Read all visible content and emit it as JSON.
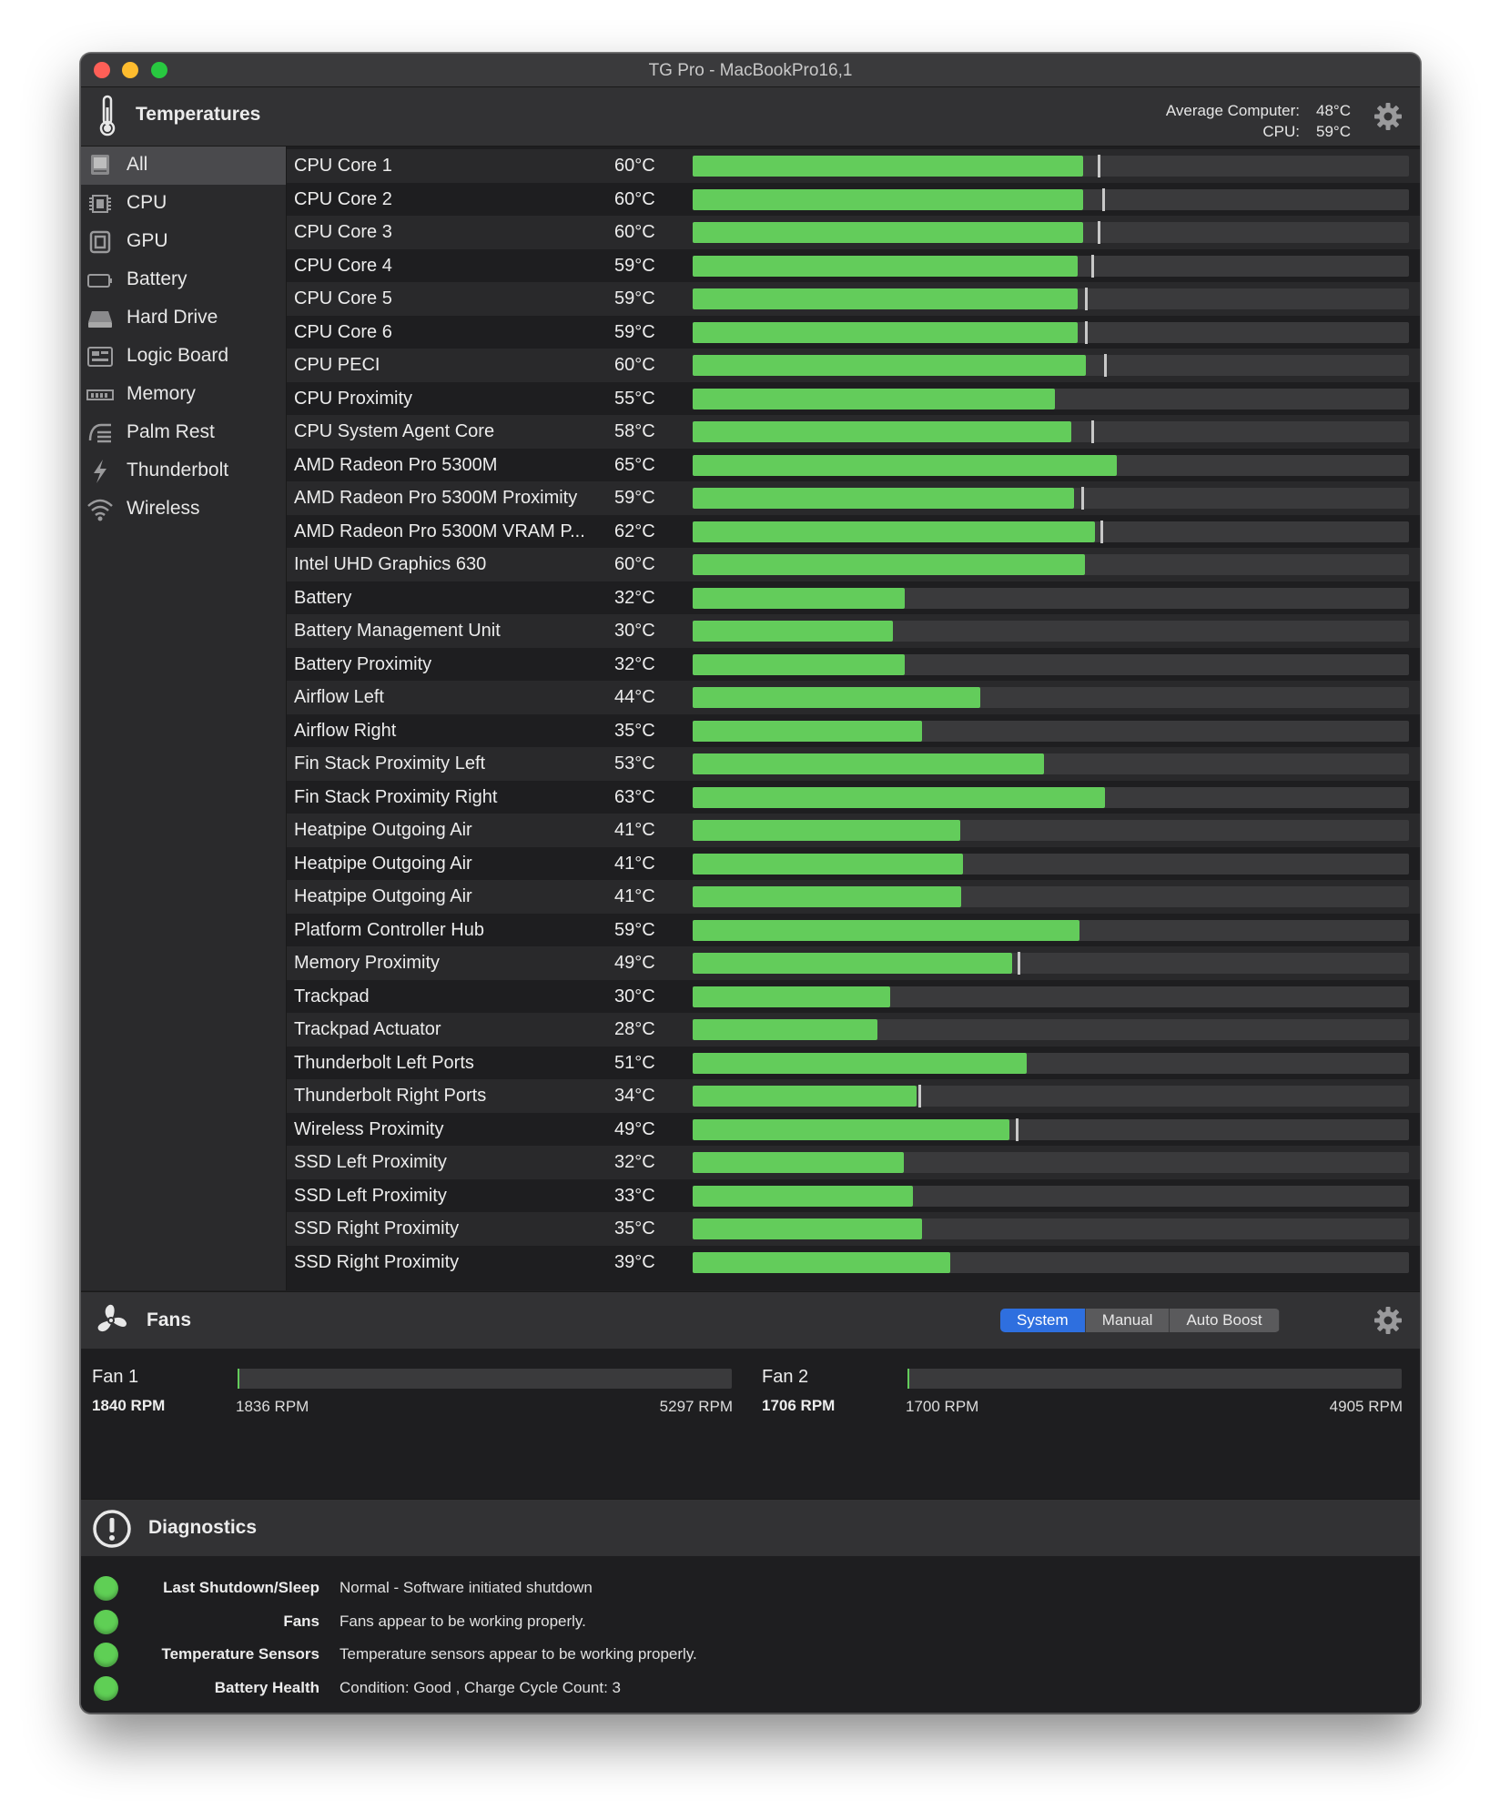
{
  "window": {
    "title": "TG Pro - MacBookPro16,1"
  },
  "temperatures": {
    "title": "Temperatures",
    "average_label": "Average Computer:",
    "average_value": "48°C",
    "cpu_label": "CPU:",
    "cpu_value": "59°C"
  },
  "sidebar": {
    "items": [
      {
        "label": "All",
        "icon": "computer-icon",
        "selected": true
      },
      {
        "label": "CPU",
        "icon": "cpu-chip-icon"
      },
      {
        "label": "GPU",
        "icon": "gpu-chip-icon"
      },
      {
        "label": "Battery",
        "icon": "battery-icon"
      },
      {
        "label": "Hard Drive",
        "icon": "hard-drive-icon"
      },
      {
        "label": "Logic Board",
        "icon": "logic-board-icon"
      },
      {
        "label": "Memory",
        "icon": "memory-icon"
      },
      {
        "label": "Palm Rest",
        "icon": "palm-rest-icon"
      },
      {
        "label": "Thunderbolt",
        "icon": "thunderbolt-icon"
      },
      {
        "label": "Wireless",
        "icon": "wireless-icon"
      }
    ]
  },
  "sensors": [
    {
      "name": "CPU Core 1",
      "value": "60°C",
      "level": 0.545,
      "max_level": 0.565
    },
    {
      "name": "CPU Core 2",
      "value": "60°C",
      "level": 0.545,
      "max_level": 0.572
    },
    {
      "name": "CPU Core 3",
      "value": "60°C",
      "level": 0.545,
      "max_level": 0.565
    },
    {
      "name": "CPU Core 4",
      "value": "59°C",
      "level": 0.537,
      "max_level": 0.556
    },
    {
      "name": "CPU Core 5",
      "value": "59°C",
      "level": 0.537,
      "max_level": 0.548
    },
    {
      "name": "CPU Core 6",
      "value": "59°C",
      "level": 0.537,
      "max_level": 0.548
    },
    {
      "name": "CPU PECI",
      "value": "60°C",
      "level": 0.549,
      "max_level": 0.574
    },
    {
      "name": "CPU Proximity",
      "value": "55°C",
      "level": 0.506,
      "max_level": null
    },
    {
      "name": "CPU System Agent Core",
      "value": "58°C",
      "level": 0.528,
      "max_level": 0.556
    },
    {
      "name": "AMD Radeon Pro 5300M",
      "value": "65°C",
      "level": 0.592,
      "max_level": null
    },
    {
      "name": "AMD Radeon Pro 5300M Proximity",
      "value": "59°C",
      "level": 0.533,
      "max_level": 0.542
    },
    {
      "name": "AMD Radeon Pro 5300M VRAM P...",
      "value": "62°C",
      "level": 0.561,
      "max_level": 0.569
    },
    {
      "name": "Intel UHD Graphics 630",
      "value": "60°C",
      "level": 0.548,
      "max_level": null
    },
    {
      "name": "Battery",
      "value": "32°C",
      "level": 0.296,
      "max_level": null
    },
    {
      "name": "Battery Management Unit",
      "value": "30°C",
      "level": 0.28,
      "max_level": null
    },
    {
      "name": "Battery Proximity",
      "value": "32°C",
      "level": 0.296,
      "max_level": null
    },
    {
      "name": "Airflow Left",
      "value": "44°C",
      "level": 0.401,
      "max_level": null
    },
    {
      "name": "Airflow Right",
      "value": "35°C",
      "level": 0.32,
      "max_level": null
    },
    {
      "name": "Fin Stack Proximity Left",
      "value": "53°C",
      "level": 0.49,
      "max_level": null
    },
    {
      "name": "Fin Stack Proximity Right",
      "value": "63°C",
      "level": 0.575,
      "max_level": null
    },
    {
      "name": "Heatpipe Outgoing Air",
      "value": "41°C",
      "level": 0.373,
      "max_level": null
    },
    {
      "name": "Heatpipe Outgoing Air",
      "value": "41°C",
      "level": 0.378,
      "max_level": null
    },
    {
      "name": "Heatpipe Outgoing Air",
      "value": "41°C",
      "level": 0.375,
      "max_level": null
    },
    {
      "name": "Platform Controller Hub",
      "value": "59°C",
      "level": 0.54,
      "max_level": null
    },
    {
      "name": "Memory Proximity",
      "value": "49°C",
      "level": 0.446,
      "max_level": 0.453
    },
    {
      "name": "Trackpad",
      "value": "30°C",
      "level": 0.276,
      "max_level": null
    },
    {
      "name": "Trackpad Actuator",
      "value": "28°C",
      "level": 0.258,
      "max_level": null
    },
    {
      "name": "Thunderbolt Left Ports",
      "value": "51°C",
      "level": 0.466,
      "max_level": null
    },
    {
      "name": "Thunderbolt Right Ports",
      "value": "34°C",
      "level": 0.312,
      "max_level": 0.315
    },
    {
      "name": "Wireless Proximity",
      "value": "49°C",
      "level": 0.442,
      "max_level": 0.451
    },
    {
      "name": "SSD Left Proximity",
      "value": "32°C",
      "level": 0.295,
      "max_level": null
    },
    {
      "name": "SSD Left Proximity",
      "value": "33°C",
      "level": 0.307,
      "max_level": null
    },
    {
      "name": "SSD Right Proximity",
      "value": "35°C",
      "level": 0.32,
      "max_level": null
    },
    {
      "name": "SSD Right Proximity",
      "value": "39°C",
      "level": 0.359,
      "max_level": null
    }
  ],
  "fans": {
    "title": "Fans",
    "modes": [
      {
        "label": "System",
        "active": true
      },
      {
        "label": "Manual",
        "active": false
      },
      {
        "label": "Auto Boost",
        "active": false
      }
    ],
    "items": [
      {
        "name": "Fan 1",
        "rpm": "1840 RPM",
        "min": "1836 RPM",
        "max": "5297 RPM",
        "level": 0.001
      },
      {
        "name": "Fan 2",
        "rpm": "1706 RPM",
        "min": "1700 RPM",
        "max": "4905 RPM",
        "level": 0.002
      }
    ]
  },
  "diagnostics": {
    "title": "Diagnostics",
    "status_color": "#5fcf55",
    "items": [
      {
        "label": "Last Shutdown/Sleep",
        "value": "Normal - Software initiated shutdown"
      },
      {
        "label": "Fans",
        "value": "Fans appear to be working properly."
      },
      {
        "label": "Temperature Sensors",
        "value": "Temperature sensors appear to be working properly."
      },
      {
        "label": "Battery Health",
        "value": "Condition: Good , Charge Cycle Count: 3"
      }
    ]
  },
  "colors": {
    "bar_green": "#63cc5b",
    "accent_blue": "#2e6fdf"
  }
}
